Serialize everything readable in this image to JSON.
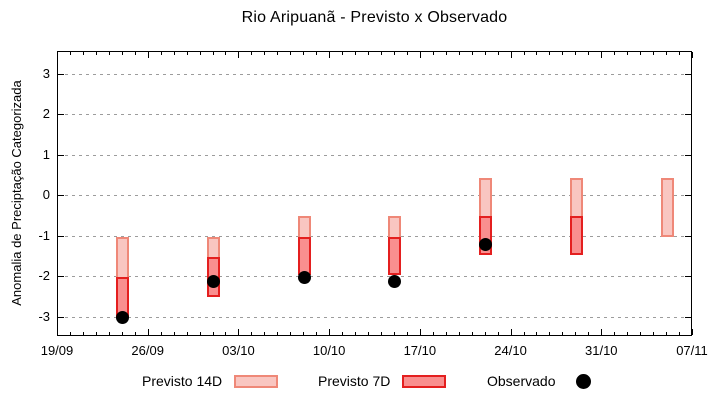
{
  "chart_data": {
    "type": "bar",
    "subtype": "weekly-forecast-range-bars-with-observed-scatter",
    "title": "Rio Aripuanã - Previsto x Observado",
    "ylabel": "Anomalia de Preciptação Categorizada",
    "xlabel": "",
    "x_tick_labels": [
      "19/09",
      "26/09",
      "03/10",
      "10/10",
      "17/10",
      "24/10",
      "31/10",
      "07/11"
    ],
    "x_tick_days": [
      0,
      7,
      14,
      21,
      28,
      35,
      42,
      49
    ],
    "x_minor_tick_interval_days": 1,
    "y_ticks": [
      -3,
      -2,
      -1,
      0,
      1,
      2,
      3
    ],
    "y_tick_labels": [
      "-3",
      "-2",
      "-1",
      "0",
      "1",
      "2",
      "3"
    ],
    "ylim": [
      -3.48,
      3.56
    ],
    "xlim_days": [
      0,
      49
    ],
    "grid": true,
    "series": [
      {
        "name": "Previsto 14D",
        "type": "range-bar",
        "fill": "#f9c6c1",
        "border": "#ef8878"
      },
      {
        "name": "Previsto 7D",
        "type": "range-bar",
        "fill": "#f98f8f",
        "border": "#e41f1f"
      },
      {
        "name": "Observado",
        "type": "scatter",
        "color": "#000000"
      }
    ],
    "bars": [
      {
        "date": "24/09",
        "day": 5,
        "previsto_14d": [
          -1.0,
          -3.0
        ],
        "previsto_7d": [
          -2.0,
          -3.0
        ],
        "observado": -3.0
      },
      {
        "date": "01/10",
        "day": 12,
        "previsto_14d": [
          -1.0,
          -2.5
        ],
        "previsto_7d": [
          -1.5,
          -2.5
        ],
        "observado": -2.1
      },
      {
        "date": "08/10",
        "day": 19,
        "previsto_14d": [
          -0.5,
          -1.95
        ],
        "previsto_7d": [
          -1.0,
          -1.95
        ],
        "observado": -2.0
      },
      {
        "date": "15/10",
        "day": 26,
        "previsto_14d": [
          -0.5,
          -1.95
        ],
        "previsto_7d": [
          -1.0,
          -1.95
        ],
        "observado": -2.1
      },
      {
        "date": "22/10",
        "day": 33,
        "previsto_14d": [
          0.45,
          -1.45
        ],
        "previsto_7d": [
          -0.5,
          -1.45
        ],
        "observado": -1.2
      },
      {
        "date": "29/10",
        "day": 40,
        "previsto_14d": [
          0.45,
          -1.45
        ],
        "previsto_7d": [
          -0.5,
          -1.45
        ],
        "observado": null
      },
      {
        "date": "05/11",
        "day": 47,
        "previsto_14d": [
          0.45,
          -1.0
        ],
        "previsto_7d": null,
        "observado": null
      }
    ],
    "legend": {
      "position": "bottom-center",
      "items": [
        {
          "label": "Previsto 14D",
          "marker": "box-light"
        },
        {
          "label": "Previsto 7D",
          "marker": "box-dark"
        },
        {
          "label": "Observado",
          "marker": "dot"
        }
      ]
    },
    "colors": {
      "p14_fill": "#f9c6c1",
      "p14_border": "#ef8878",
      "p7_fill": "#f98f8f",
      "p7_border": "#e41f1f",
      "observed": "#000000",
      "grid": "#9c9c9c",
      "axis": "#000000",
      "background": "#ffffff"
    }
  }
}
